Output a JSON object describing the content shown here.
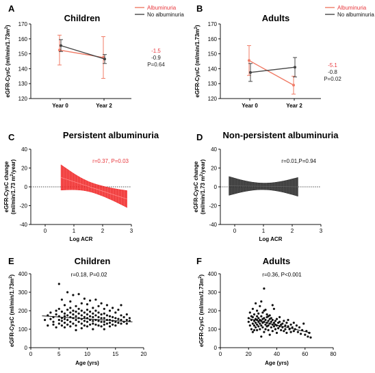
{
  "chart_data": [
    {
      "type": "line",
      "panel": "A",
      "title": "Children",
      "ylabel": "eGFR-CysC (ml/min/1.73m²)",
      "categories": [
        "Year 0",
        "Year 2"
      ],
      "ylim": [
        120,
        170
      ],
      "yticks": [
        120,
        130,
        140,
        150,
        160,
        170
      ],
      "series": [
        {
          "name": "Albuminuria",
          "color": "#f07b66",
          "values": [
            152.5,
            147.5
          ],
          "err": [
            10,
            14
          ]
        },
        {
          "name": "No albuminuria",
          "color": "#444444",
          "values": [
            155.5,
            146.5
          ],
          "err": [
            4,
            3
          ]
        }
      ],
      "annotations": [
        {
          "text": "-1.5",
          "color": "#e8383d"
        },
        {
          "text": "-0.9",
          "color": "#222222"
        },
        {
          "text": "P=0.64",
          "color": "#222222"
        }
      ]
    },
    {
      "type": "line",
      "panel": "B",
      "title": "Adults",
      "ylabel": "eGFR-CysC (ml/min/1.73m²)",
      "categories": [
        "Year 0",
        "Year 2"
      ],
      "ylim": [
        120,
        170
      ],
      "yticks": [
        120,
        130,
        140,
        150,
        160,
        170
      ],
      "series": [
        {
          "name": "Albuminuria",
          "color": "#f07b66",
          "values": [
            145.5,
            129
          ],
          "err": [
            10,
            6
          ]
        },
        {
          "name": "No albuminuria",
          "color": "#444444",
          "values": [
            137.5,
            141
          ],
          "err": [
            6,
            6.5
          ]
        }
      ],
      "annotations": [
        {
          "text": "-5.1",
          "color": "#e8383d"
        },
        {
          "text": "-0.8",
          "color": "#222222"
        },
        {
          "text": "P=0.02",
          "color": "#222222"
        }
      ]
    },
    {
      "type": "area",
      "panel": "C",
      "title": "Persistent albuminuria",
      "ylabel": "eGFR-CysC change (ml/min/1.73 m²/year)",
      "xlabel": "Log ACR",
      "xlim": [
        -0.5,
        3
      ],
      "xticks": [
        0,
        1,
        2,
        3
      ],
      "ylim": [
        -40,
        40
      ],
      "yticks": [
        -40,
        -20,
        0,
        20,
        40
      ],
      "color": "#ee2222",
      "band": {
        "x": [
          0.55,
          2.85
        ],
        "mid": [
          10,
          -13
        ],
        "upper": [
          24,
          -4
        ],
        "lower": [
          -3,
          -22
        ],
        "center_x": 1.7,
        "center_half_width": 5
      },
      "annotation": "r=0.37, P=0.03"
    },
    {
      "type": "area",
      "panel": "D",
      "title": "Non-persistent albuminuria",
      "ylabel": "eGFR-CysC change (ml/min/1.73 m²/year)",
      "xlabel": "Log ACR",
      "xlim": [
        -0.5,
        3
      ],
      "xticks": [
        0,
        1,
        2,
        3
      ],
      "ylim": [
        -40,
        40
      ],
      "yticks": [
        -40,
        -20,
        0,
        20,
        40
      ],
      "color": "#222222",
      "band": {
        "x": [
          -0.2,
          2.2
        ],
        "mid": [
          1,
          0
        ],
        "upper": [
          11,
          10
        ],
        "lower": [
          -9,
          -10
        ],
        "center_x": 1.0,
        "center_half_width": 3.5
      },
      "annotation": "r=0.01,P=0.94"
    },
    {
      "type": "scatter",
      "panel": "E",
      "title": "Children",
      "ylabel": "eGFR-CysC (ml/min/1.73m²)",
      "xlabel": "Age (yrs)",
      "xlim": [
        0,
        20
      ],
      "xticks": [
        0,
        5,
        10,
        15,
        20
      ],
      "ylim": [
        0,
        400
      ],
      "yticks": [
        0,
        100,
        200,
        300,
        400
      ],
      "annotation": "r=0.18, P=0.02",
      "fit": {
        "x": [
          2,
          18
        ],
        "y": [
          172,
          140
        ]
      },
      "points": [
        [
          2.5,
          150
        ],
        [
          3,
          175
        ],
        [
          3,
          120
        ],
        [
          3.5,
          190
        ],
        [
          3.5,
          155
        ],
        [
          4,
          140
        ],
        [
          4,
          165
        ],
        [
          4,
          125
        ],
        [
          4.5,
          200
        ],
        [
          4.5,
          180
        ],
        [
          4.5,
          110
        ],
        [
          5,
          210
        ],
        [
          5,
          170
        ],
        [
          5,
          150
        ],
        [
          5,
          130
        ],
        [
          5,
          345
        ],
        [
          5.5,
          260
        ],
        [
          5.5,
          195
        ],
        [
          5.5,
          160
        ],
        [
          5.5,
          145
        ],
        [
          5.5,
          120
        ],
        [
          6,
          230
        ],
        [
          6,
          185
        ],
        [
          6,
          170
        ],
        [
          6,
          155
        ],
        [
          6,
          135
        ],
        [
          6,
          110
        ],
        [
          6.5,
          300
        ],
        [
          6.5,
          205
        ],
        [
          6.5,
          175
        ],
        [
          6.5,
          150
        ],
        [
          6.5,
          125
        ],
        [
          7,
          250
        ],
        [
          7,
          215
        ],
        [
          7,
          190
        ],
        [
          7,
          165
        ],
        [
          7,
          140
        ],
        [
          7,
          115
        ],
        [
          7.5,
          285
        ],
        [
          7.5,
          200
        ],
        [
          7.5,
          180
        ],
        [
          7.5,
          160
        ],
        [
          7.5,
          130
        ],
        [
          8,
          225
        ],
        [
          8,
          195
        ],
        [
          8,
          170
        ],
        [
          8,
          150
        ],
        [
          8,
          120
        ],
        [
          8,
          95
        ],
        [
          8.5,
          290
        ],
        [
          8.5,
          210
        ],
        [
          8.5,
          185
        ],
        [
          8.5,
          160
        ],
        [
          8.5,
          140
        ],
        [
          9,
          240
        ],
        [
          9,
          200
        ],
        [
          9,
          175
        ],
        [
          9,
          155
        ],
        [
          9,
          130
        ],
        [
          9,
          105
        ],
        [
          9.5,
          265
        ],
        [
          9.5,
          190
        ],
        [
          9.5,
          165
        ],
        [
          9.5,
          145
        ],
        [
          9.5,
          120
        ],
        [
          10,
          235
        ],
        [
          10,
          205
        ],
        [
          10,
          180
        ],
        [
          10,
          160
        ],
        [
          10,
          140
        ],
        [
          10,
          115
        ],
        [
          10.5,
          255
        ],
        [
          10.5,
          195
        ],
        [
          10.5,
          170
        ],
        [
          10.5,
          150
        ],
        [
          10.5,
          125
        ],
        [
          11,
          215
        ],
        [
          11,
          185
        ],
        [
          11,
          165
        ],
        [
          11,
          145
        ],
        [
          11,
          130
        ],
        [
          11,
          100
        ],
        [
          11.5,
          260
        ],
        [
          11.5,
          200
        ],
        [
          11.5,
          175
        ],
        [
          11.5,
          150
        ],
        [
          11.5,
          125
        ],
        [
          12,
          225
        ],
        [
          12,
          190
        ],
        [
          12,
          165
        ],
        [
          12,
          145
        ],
        [
          12,
          120
        ],
        [
          12.5,
          240
        ],
        [
          12.5,
          180
        ],
        [
          12.5,
          160
        ],
        [
          12.5,
          140
        ],
        [
          12.5,
          115
        ],
        [
          13,
          210
        ],
        [
          13,
          185
        ],
        [
          13,
          160
        ],
        [
          13,
          140
        ],
        [
          13,
          125
        ],
        [
          13,
          100
        ],
        [
          13.5,
          230
        ],
        [
          13.5,
          175
        ],
        [
          13.5,
          150
        ],
        [
          13.5,
          130
        ],
        [
          14,
          200
        ],
        [
          14,
          170
        ],
        [
          14,
          150
        ],
        [
          14,
          135
        ],
        [
          14,
          115
        ],
        [
          14.5,
          215
        ],
        [
          14.5,
          165
        ],
        [
          14.5,
          145
        ],
        [
          14.5,
          125
        ],
        [
          15,
          190
        ],
        [
          15,
          160
        ],
        [
          15,
          140
        ],
        [
          15,
          120
        ],
        [
          15.5,
          205
        ],
        [
          15.5,
          155
        ],
        [
          15.5,
          135
        ],
        [
          16,
          230
        ],
        [
          16,
          175
        ],
        [
          16,
          150
        ],
        [
          16,
          130
        ],
        [
          16.5,
          165
        ],
        [
          16.5,
          140
        ],
        [
          17,
          180
        ],
        [
          17,
          150
        ],
        [
          17,
          130
        ],
        [
          17.5,
          145
        ],
        [
          17.5,
          160
        ]
      ]
    },
    {
      "type": "scatter",
      "panel": "F",
      "title": "Adults",
      "ylabel": "eGFR-CysC (ml/min/1.73m²)",
      "xlabel": "Age (yrs)",
      "xlim": [
        0,
        80
      ],
      "xticks": [
        0,
        20,
        40,
        60,
        80
      ],
      "ylim": [
        0,
        400
      ],
      "yticks": [
        0,
        100,
        200,
        300,
        400
      ],
      "annotation": "r=0.36, P<0.001",
      "fit": {
        "x": [
          20,
          64
        ],
        "y": [
          158,
          80
        ]
      },
      "points": [
        [
          20,
          160
        ],
        [
          20,
          140
        ],
        [
          21,
          120
        ],
        [
          21,
          190
        ],
        [
          22,
          150
        ],
        [
          22,
          170
        ],
        [
          22,
          100
        ],
        [
          23,
          130
        ],
        [
          23,
          210
        ],
        [
          23,
          165
        ],
        [
          24,
          145
        ],
        [
          24,
          120
        ],
        [
          24,
          180
        ],
        [
          24,
          95
        ],
        [
          25,
          155
        ],
        [
          25,
          135
        ],
        [
          25,
          240
        ],
        [
          25,
          110
        ],
        [
          26,
          170
        ],
        [
          26,
          150
        ],
        [
          26,
          125
        ],
        [
          26,
          200
        ],
        [
          27,
          140
        ],
        [
          27,
          160
        ],
        [
          27,
          115
        ],
        [
          27,
          185
        ],
        [
          28,
          130
        ],
        [
          28,
          150
        ],
        [
          28,
          225
        ],
        [
          28,
          100
        ],
        [
          29,
          145
        ],
        [
          29,
          170
        ],
        [
          29,
          120
        ],
        [
          29,
          60
        ],
        [
          30,
          155
        ],
        [
          30,
          135
        ],
        [
          30,
          190
        ],
        [
          30,
          110
        ],
        [
          31,
          320
        ],
        [
          31,
          140
        ],
        [
          31,
          160
        ],
        [
          31,
          85
        ],
        [
          32,
          125
        ],
        [
          32,
          150
        ],
        [
          32,
          205
        ],
        [
          32,
          100
        ],
        [
          33,
          135
        ],
        [
          33,
          165
        ],
        [
          33,
          115
        ],
        [
          33,
          180
        ],
        [
          34,
          145
        ],
        [
          34,
          120
        ],
        [
          34,
          95
        ],
        [
          35,
          155
        ],
        [
          35,
          130
        ],
        [
          35,
          175
        ],
        [
          35,
          70
        ],
        [
          36,
          140
        ],
        [
          36,
          110
        ],
        [
          36,
          160
        ],
        [
          37,
          125
        ],
        [
          37,
          150
        ],
        [
          37,
          90
        ],
        [
          38,
          135
        ],
        [
          38,
          115
        ],
        [
          38,
          210
        ],
        [
          39,
          145
        ],
        [
          39,
          100
        ],
        [
          39,
          125
        ],
        [
          40,
          155
        ],
        [
          40,
          120
        ],
        [
          40,
          80
        ],
        [
          41,
          135
        ],
        [
          41,
          105
        ],
        [
          42,
          140
        ],
        [
          42,
          115
        ],
        [
          42,
          165
        ],
        [
          43,
          125
        ],
        [
          43,
          95
        ],
        [
          44,
          130
        ],
        [
          44,
          110
        ],
        [
          45,
          145
        ],
        [
          45,
          90
        ],
        [
          46,
          120
        ],
        [
          46,
          100
        ],
        [
          47,
          135
        ],
        [
          47,
          80
        ],
        [
          48,
          115
        ],
        [
          48,
          150
        ],
        [
          49,
          100
        ],
        [
          50,
          125
        ],
        [
          50,
          85
        ],
        [
          51,
          110
        ],
        [
          52,
          135
        ],
        [
          52,
          90
        ],
        [
          53,
          100
        ],
        [
          54,
          120
        ],
        [
          55,
          85
        ],
        [
          56,
          110
        ],
        [
          57,
          75
        ],
        [
          58,
          95
        ],
        [
          59,
          130
        ],
        [
          60,
          70
        ],
        [
          61,
          90
        ],
        [
          62,
          60
        ],
        [
          63,
          80
        ],
        [
          64,
          55
        ],
        [
          26,
          95
        ],
        [
          29,
          250
        ],
        [
          31,
          200
        ],
        [
          34,
          170
        ],
        [
          37,
          230
        ],
        [
          23,
          85
        ]
      ]
    }
  ]
}
